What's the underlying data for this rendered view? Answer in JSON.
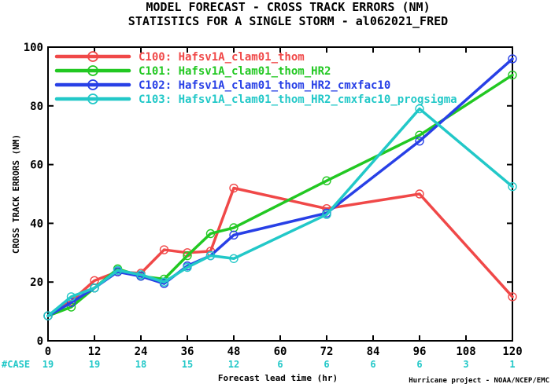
{
  "chart_data": {
    "type": "line",
    "title": "MODEL FORECAST - CROSS TRACK ERRORS (NM)",
    "subtitle": "STATISTICS FOR A SINGLE STORM - al062021_FRED",
    "xlabel": "Forecast lead time (hr)",
    "ylabel": "CROSS TRACK ERRORS (NM)",
    "xlim": [
      0,
      120
    ],
    "ylim": [
      0,
      100
    ],
    "x_ticks": [
      0,
      12,
      24,
      36,
      48,
      60,
      72,
      84,
      96,
      108,
      120
    ],
    "y_ticks": [
      0,
      20,
      40,
      60,
      80,
      100
    ],
    "grid": false,
    "legend_position": "top-left",
    "case_label": "#CASE",
    "case_counts": [
      "19",
      "19",
      "18",
      "15",
      "12",
      "6",
      "6",
      "6",
      "6",
      "3",
      "1"
    ],
    "credit": "Hurricane project - NOAA/NCEP/EMC",
    "series": [
      {
        "name": "C100: Hafsv1A_clam01_thom",
        "color": "#f04848",
        "x": [
          0,
          6,
          12,
          18,
          24,
          30,
          36,
          42,
          48,
          72,
          96,
          120
        ],
        "y": [
          8.5,
          13.5,
          20.5,
          23.5,
          23.0,
          31.0,
          30.0,
          30.5,
          52.0,
          45.0,
          50.0,
          15.0
        ]
      },
      {
        "name": "C101: Hafsv1A_clam01_thom_HR2",
        "color": "#22c822",
        "x": [
          0,
          6,
          12,
          18,
          24,
          30,
          36,
          42,
          48,
          72,
          96,
          120
        ],
        "y": [
          8.5,
          11.5,
          18.0,
          24.5,
          22.0,
          21.0,
          29.0,
          36.5,
          38.5,
          54.5,
          70.0,
          90.5
        ]
      },
      {
        "name": "C102: Hafsv1A_clam01_thom_HR2_cmxfac10",
        "color": "#2840e6",
        "x": [
          0,
          6,
          12,
          18,
          24,
          30,
          36,
          42,
          48,
          72,
          96,
          120
        ],
        "y": [
          8.5,
          13.0,
          18.0,
          23.5,
          22.0,
          19.5,
          25.5,
          29.0,
          36.0,
          43.5,
          68.0,
          96.0
        ]
      },
      {
        "name": "C103: Hafsv1A_clam01_thom_HR2_cmxfac10_progsigma",
        "color": "#22c8c8",
        "x": [
          0,
          6,
          12,
          18,
          24,
          30,
          36,
          42,
          48,
          72,
          96,
          120
        ],
        "y": [
          8.5,
          15.0,
          18.0,
          24.0,
          22.5,
          20.0,
          25.0,
          29.0,
          28.0,
          43.0,
          79.0,
          52.5
        ]
      }
    ]
  }
}
